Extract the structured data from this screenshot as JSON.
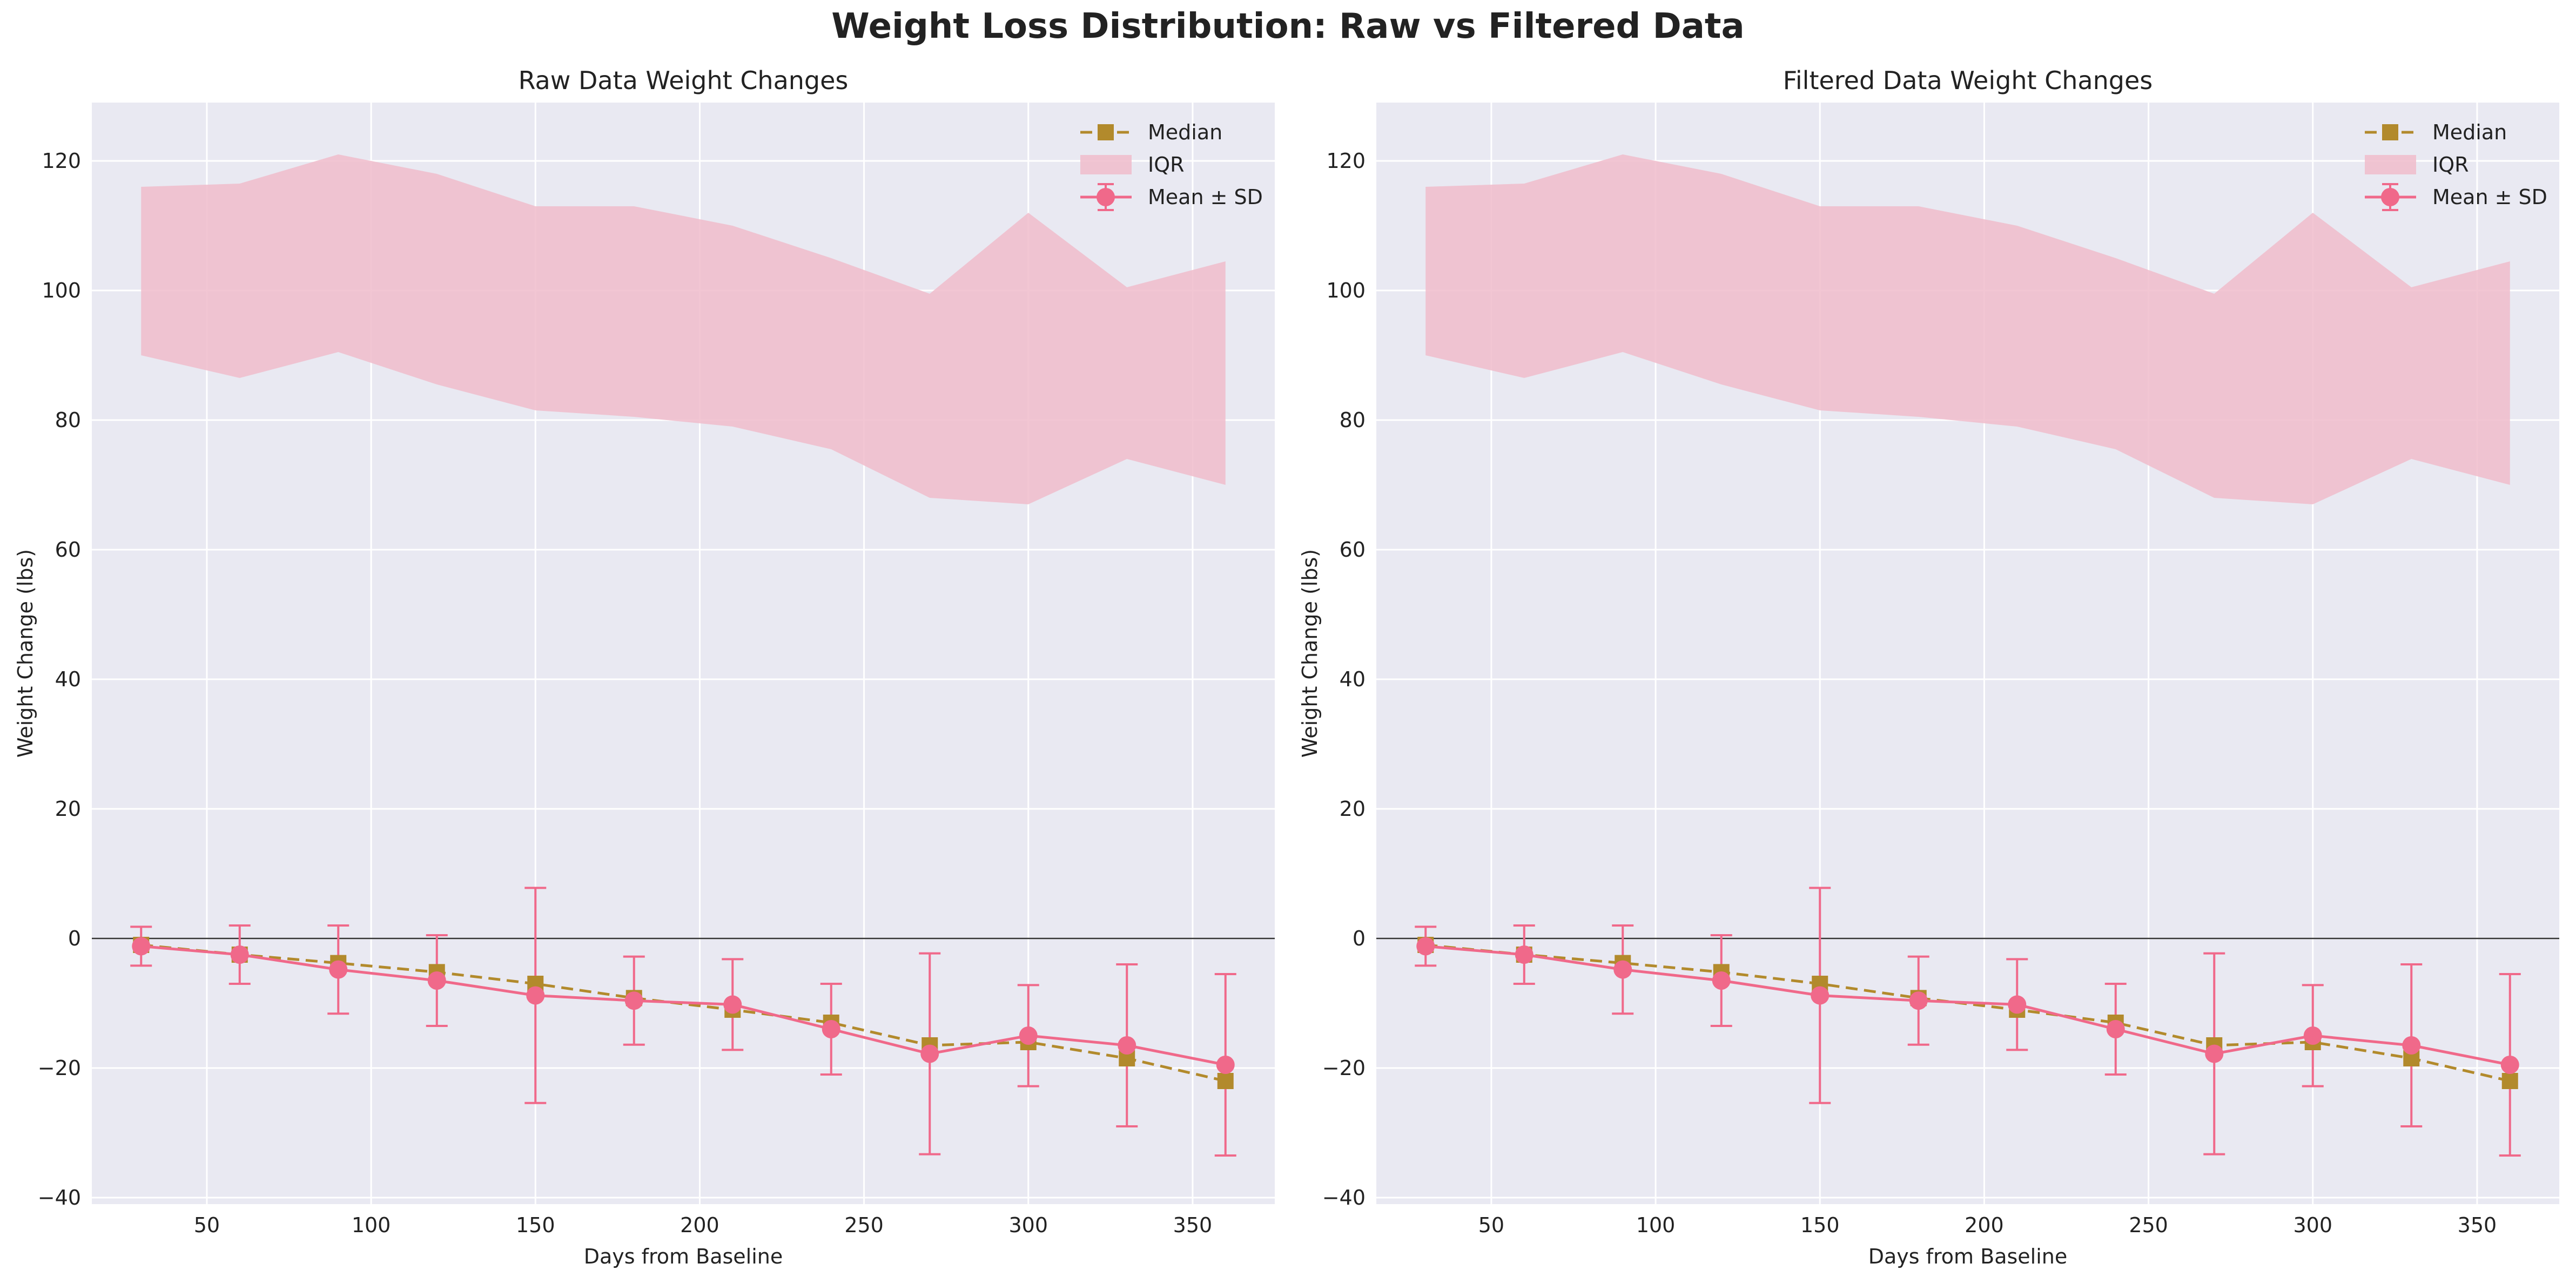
{
  "figure": {
    "title": "Weight Loss Distribution: Raw vs Filtered Data"
  },
  "colors": {
    "mean": "#f0698a",
    "median": "#b28a2c",
    "iqr": "#f0bccb",
    "background": "#e9e9f2",
    "zero_line": "#333333"
  },
  "chart_data": [
    {
      "type": "line",
      "title": "Raw Data Weight Changes",
      "xlabel": "Days from Baseline",
      "ylabel": "Weight Change (lbs)",
      "xlim": [
        15,
        375
      ],
      "ylim": [
        -41,
        129
      ],
      "x_ticks": [
        50,
        100,
        150,
        200,
        250,
        300,
        350
      ],
      "y_ticks": [
        -40,
        -20,
        0,
        20,
        40,
        60,
        80,
        100,
        120
      ],
      "grid": true,
      "legend": {
        "position": "top-right",
        "entries": [
          "Median",
          "IQR",
          "Mean ± SD"
        ]
      },
      "x": [
        30,
        60,
        90,
        120,
        150,
        180,
        210,
        240,
        270,
        300,
        330,
        360
      ],
      "series": [
        {
          "name": "Median",
          "style": "dashed",
          "marker": "square",
          "values": [
            -1,
            -2.5,
            -3.8,
            -5.2,
            -7,
            -9.2,
            -11,
            -13,
            -16.5,
            -16,
            -18.5,
            -22
          ]
        },
        {
          "name": "Mean ± SD",
          "style": "solid",
          "marker": "circle",
          "values": [
            -1.2,
            -2.5,
            -4.8,
            -6.5,
            -8.8,
            -9.6,
            -10.2,
            -14,
            -17.8,
            -15,
            -16.5,
            -19.5
          ],
          "sd": [
            3,
            4.5,
            6.8,
            7,
            16.6,
            6.8,
            7,
            7,
            15.5,
            7.8,
            12.5,
            14
          ]
        },
        {
          "name": "IQR",
          "style": "band",
          "lower": [
            90,
            86.5,
            90.5,
            85.5,
            81.5,
            80.5,
            79,
            75.5,
            68,
            67,
            74,
            70
          ],
          "upper": [
            116,
            116.5,
            121,
            118,
            113,
            113,
            110,
            105,
            99.5,
            112,
            100.5,
            104.5
          ]
        }
      ]
    },
    {
      "type": "line",
      "title": "Filtered Data Weight Changes",
      "xlabel": "Days from Baseline",
      "ylabel": "Weight Change (lbs)",
      "xlim": [
        15,
        375
      ],
      "ylim": [
        -41,
        129
      ],
      "x_ticks": [
        50,
        100,
        150,
        200,
        250,
        300,
        350
      ],
      "y_ticks": [
        -40,
        -20,
        0,
        20,
        40,
        60,
        80,
        100,
        120
      ],
      "grid": true,
      "legend": {
        "position": "top-right",
        "entries": [
          "Median",
          "IQR",
          "Mean ± SD"
        ]
      },
      "x": [
        30,
        60,
        90,
        120,
        150,
        180,
        210,
        240,
        270,
        300,
        330,
        360
      ],
      "series": [
        {
          "name": "Median",
          "style": "dashed",
          "marker": "square",
          "values": [
            -1,
            -2.5,
            -3.8,
            -5.2,
            -7,
            -9.2,
            -11,
            -13,
            -16.5,
            -16,
            -18.5,
            -22
          ]
        },
        {
          "name": "Mean ± SD",
          "style": "solid",
          "marker": "circle",
          "values": [
            -1.2,
            -2.5,
            -4.8,
            -6.5,
            -8.8,
            -9.6,
            -10.2,
            -14,
            -17.8,
            -15,
            -16.5,
            -19.5
          ],
          "sd": [
            3,
            4.5,
            6.8,
            7,
            16.6,
            6.8,
            7,
            7,
            15.5,
            7.8,
            12.5,
            14
          ]
        },
        {
          "name": "IQR",
          "style": "band",
          "lower": [
            90,
            86.5,
            90.5,
            85.5,
            81.5,
            80.5,
            79,
            75.5,
            68,
            67,
            74,
            70
          ],
          "upper": [
            116,
            116.5,
            121,
            118,
            113,
            113,
            110,
            105,
            99.5,
            112,
            100.5,
            104.5
          ]
        }
      ]
    }
  ]
}
